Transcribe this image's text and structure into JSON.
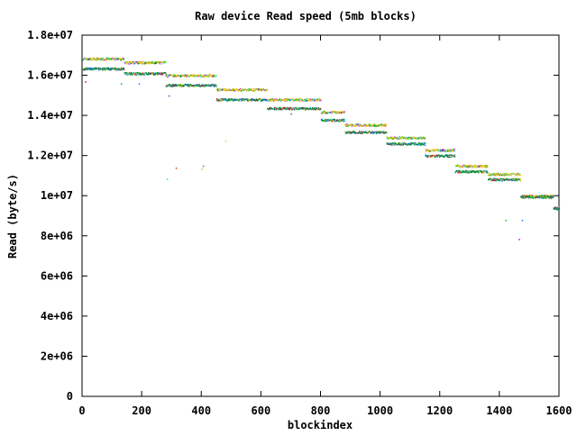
{
  "chart_data": {
    "type": "scatter",
    "title": "Raw device Read speed (5mb blocks)",
    "xlabel": "blockindex",
    "ylabel": "Read (byte/s)",
    "xlim": [
      0,
      1600
    ],
    "ylim": [
      0,
      18000000
    ],
    "x_ticks": [
      {
        "v": 0,
        "label": "0"
      },
      {
        "v": 200,
        "label": "200"
      },
      {
        "v": 400,
        "label": "400"
      },
      {
        "v": 600,
        "label": "600"
      },
      {
        "v": 800,
        "label": "800"
      },
      {
        "v": 1000,
        "label": "1000"
      },
      {
        "v": 1200,
        "label": "1200"
      },
      {
        "v": 1400,
        "label": "1400"
      },
      {
        "v": 1600,
        "label": "1600"
      }
    ],
    "y_ticks": [
      {
        "v": 0,
        "label": "0"
      },
      {
        "v": 2000000,
        "label": "2e+06"
      },
      {
        "v": 4000000,
        "label": "4e+06"
      },
      {
        "v": 6000000,
        "label": "6e+06"
      },
      {
        "v": 8000000,
        "label": "8e+06"
      },
      {
        "v": 10000000,
        "label": "1e+07"
      },
      {
        "v": 12000000,
        "label": "1.2e+07"
      },
      {
        "v": 14000000,
        "label": "1.4e+07"
      },
      {
        "v": 16000000,
        "label": "1.6e+07"
      },
      {
        "v": 18000000,
        "label": "1.8e+07"
      }
    ],
    "grid": false,
    "legend": "none",
    "series_colors": [
      "#ff0000",
      "#00c000",
      "#0080ff",
      "#c000ff",
      "#00eeee",
      "#c04000",
      "#c8c800",
      "#4169e1",
      "#ffc020",
      "#008040"
    ],
    "segments": [
      {
        "x": [
          0,
          140
        ],
        "upper": 16830000,
        "lower": 16340000
      },
      {
        "x": [
          140,
          280
        ],
        "upper": 16650000,
        "lower": 16100000
      },
      {
        "x": [
          280,
          450
        ],
        "upper": 16000000,
        "lower": 15520000
      },
      {
        "x": [
          450,
          620
        ],
        "upper": 15300000,
        "lower": 14800000
      },
      {
        "x": [
          620,
          800
        ],
        "upper": 14800000,
        "lower": 14360000
      },
      {
        "x": [
          800,
          880
        ],
        "upper": 14180000,
        "lower": 13780000
      },
      {
        "x": [
          880,
          1020
        ],
        "upper": 13530000,
        "lower": 13180000
      },
      {
        "x": [
          1020,
          1150
        ],
        "upper": 12900000,
        "lower": 12600000
      },
      {
        "x": [
          1150,
          1250
        ],
        "upper": 12280000,
        "lower": 12000000
      },
      {
        "x": [
          1250,
          1360
        ],
        "upper": 11490000,
        "lower": 11220000
      },
      {
        "x": [
          1360,
          1470
        ],
        "upper": 11090000,
        "lower": 10820000
      },
      {
        "x": [
          1470,
          1580
        ],
        "upper": 10000000,
        "lower": 9950000
      },
      {
        "x": [
          1580,
          1600
        ],
        "upper": 9400000,
        "lower": 9380000
      }
    ],
    "outliers": [
      {
        "x": 10,
        "y": 15700000
      },
      {
        "x": 130,
        "y": 15600000
      },
      {
        "x": 190,
        "y": 15600000
      },
      {
        "x": 290,
        "y": 15000000
      },
      {
        "x": 284,
        "y": 10850000
      },
      {
        "x": 314,
        "y": 11400000
      },
      {
        "x": 400,
        "y": 11350000
      },
      {
        "x": 405,
        "y": 11500000
      },
      {
        "x": 480,
        "y": 12750000
      },
      {
        "x": 700,
        "y": 14100000
      },
      {
        "x": 1380,
        "y": 10800000
      },
      {
        "x": 1420,
        "y": 8800000
      },
      {
        "x": 1475,
        "y": 8800000
      },
      {
        "x": 1465,
        "y": 7850000
      },
      {
        "x": 1540,
        "y": 9900000
      }
    ]
  }
}
